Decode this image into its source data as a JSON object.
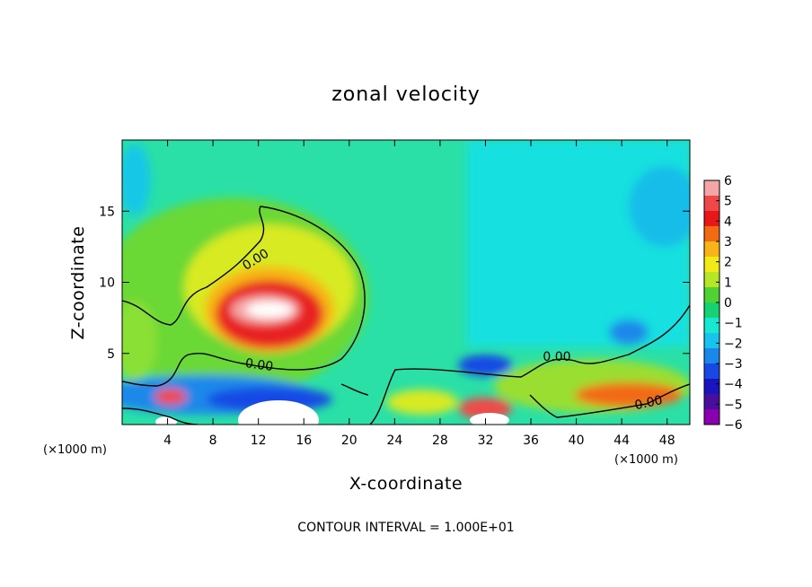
{
  "chart_data": {
    "type": "heatmap",
    "title": "zonal velocity",
    "xlabel": "X-coordinate",
    "ylabel": "Z-coordinate",
    "x_unit": "(×1000 m)",
    "y_unit": "(×1000 m)",
    "x_ticks": [
      4,
      8,
      12,
      16,
      20,
      24,
      28,
      32,
      36,
      40,
      44,
      48
    ],
    "y_ticks": [
      5,
      10,
      15
    ],
    "xlim": [
      0,
      50
    ],
    "ylim": [
      0,
      20
    ],
    "colorbar": {
      "ticks": [
        6,
        5,
        4,
        3,
        2,
        1,
        0,
        -1,
        -2,
        -3,
        -4,
        -5,
        -6
      ],
      "colors": [
        "#f4a6a6",
        "#f04848",
        "#e81818",
        "#f26a12",
        "#f8b418",
        "#f2ea18",
        "#b6e628",
        "#50d232",
        "#16d272",
        "#18e8d2",
        "#18c4ee",
        "#1a88ea",
        "#1848e4",
        "#1814c0",
        "#4a0e9e",
        "#8a00b0"
      ]
    },
    "contour_labels": [
      "0.00",
      "0.00",
      "0.00",
      "0.00"
    ],
    "footer": "CONTOUR INTERVAL = 1.000E+01"
  }
}
